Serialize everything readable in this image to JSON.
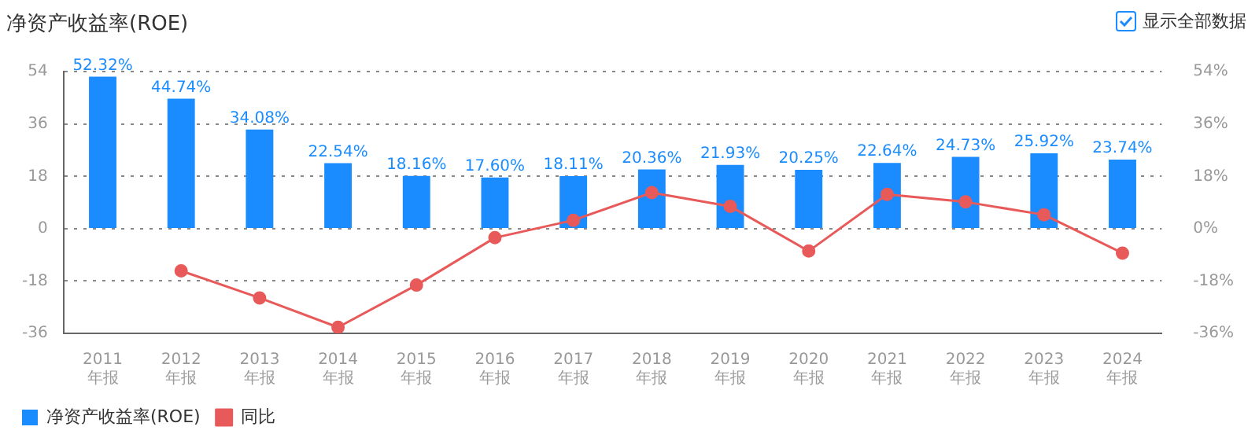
{
  "chart_data": {
    "type": "bar",
    "title": "净资产收益率(ROE)",
    "categories": [
      "2011\n年报",
      "2012\n年报",
      "2013\n年报",
      "2014\n年报",
      "2015\n年报",
      "2016\n年报",
      "2017\n年报",
      "2018\n年报",
      "2019\n年报",
      "2020\n年报",
      "2021\n年报",
      "2022\n年报",
      "2023\n年报",
      "2024\n年报"
    ],
    "series": [
      {
        "name": "净资产收益率(ROE)",
        "color": "#1a8cff",
        "values": [
          52.32,
          44.74,
          34.08,
          22.54,
          18.16,
          17.6,
          18.11,
          20.36,
          21.93,
          20.25,
          22.64,
          24.73,
          25.92,
          23.74
        ],
        "value_labels": [
          "52.32%",
          "44.74%",
          "34.08%",
          "22.54%",
          "18.16%",
          "17.60%",
          "18.11%",
          "20.36%",
          "21.93%",
          "20.25%",
          "22.64%",
          "24.73%",
          "25.92%",
          "23.74%"
        ]
      },
      {
        "name": "同比",
        "type": "line",
        "axis": "y2",
        "color": "#e85a5a",
        "marker": "circle",
        "line_style": "solid",
        "values": [
          null,
          -14.5,
          -23.8,
          -33.9,
          -19.4,
          -3.1,
          2.9,
          12.4,
          7.7,
          -7.7,
          11.8,
          9.2,
          4.8,
          -8.4
        ]
      }
    ],
    "ylim": [
      -36,
      54
    ],
    "yticks": [
      -36,
      -18,
      0,
      18,
      36,
      54
    ],
    "y2lim": [
      -36,
      54
    ],
    "y2ticks": [
      {
        "value": -36,
        "label": "-36%"
      },
      {
        "value": -18,
        "label": "-18%"
      },
      {
        "value": 0,
        "label": "0%"
      },
      {
        "value": 18,
        "label": "18%"
      },
      {
        "value": 36,
        "label": "36%"
      },
      {
        "value": 54,
        "label": "54%"
      }
    ],
    "grid": "y",
    "legend": "bottom left",
    "annotations": [
      "显示全部数据"
    ]
  }
}
